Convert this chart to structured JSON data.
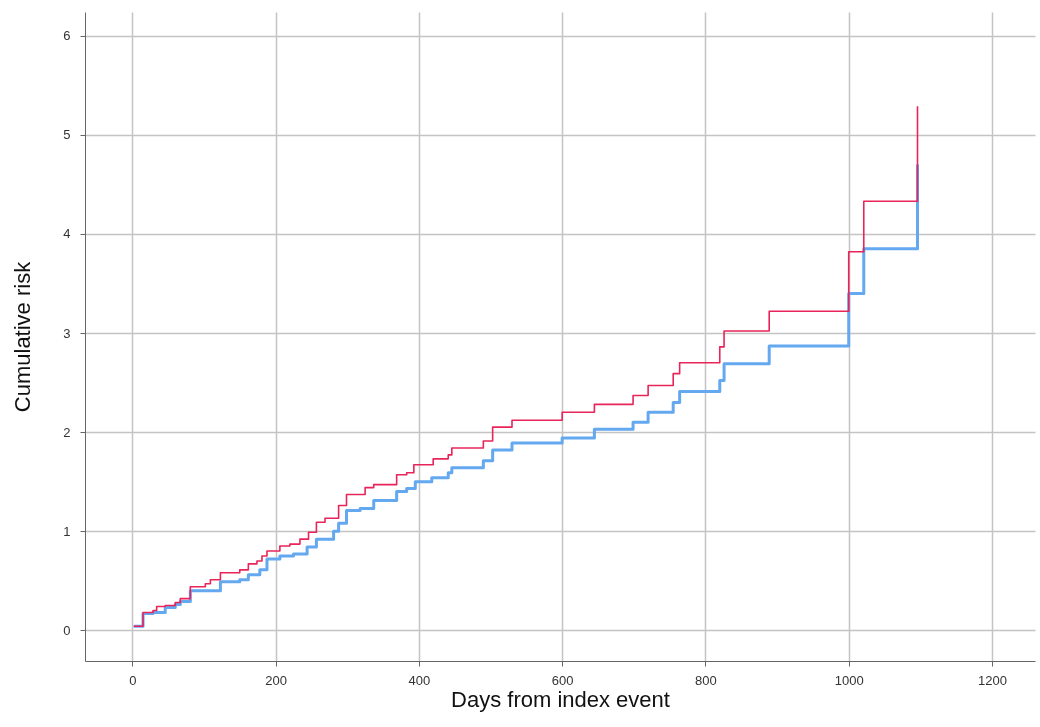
{
  "chart_data": {
    "type": "step",
    "xlabel": "Days from index event",
    "ylabel": "Cumulative risk",
    "xlim": [
      -66,
      1260
    ],
    "ylim": [
      -0.31,
      6.24
    ],
    "xticks": [
      0,
      200,
      400,
      600,
      800,
      1000,
      1200
    ],
    "yticks": [
      0,
      1,
      2,
      3,
      4,
      5,
      6
    ],
    "grid": true,
    "series": [
      {
        "color": "#64a8ef",
        "x": [
          2,
          15,
          29,
          46,
          60,
          67,
          81,
          123,
          150,
          162,
          178,
          188,
          206,
          225,
          244,
          257,
          281,
          288,
          299,
          318,
          337,
          369,
          383,
          395,
          418,
          441,
          446,
          490,
          503,
          530,
          600,
          645,
          699,
          720,
          755,
          764,
          820,
          826,
          889,
          1000,
          1021,
          1096
        ],
        "values": [
          0.04,
          0.17,
          0.18,
          0.23,
          0.26,
          0.29,
          0.4,
          0.49,
          0.51,
          0.56,
          0.61,
          0.72,
          0.75,
          0.77,
          0.84,
          0.92,
          1.0,
          1.08,
          1.21,
          1.23,
          1.31,
          1.4,
          1.43,
          1.5,
          1.54,
          1.59,
          1.64,
          1.71,
          1.82,
          1.89,
          1.94,
          2.03,
          2.1,
          2.2,
          2.3,
          2.41,
          2.52,
          2.69,
          2.87,
          3.4,
          3.85,
          4.7
        ]
      },
      {
        "color": "#e8245a",
        "x": [
          2,
          15,
          29,
          34,
          46,
          60,
          67,
          81,
          102,
          109,
          123,
          150,
          162,
          174,
          181,
          188,
          206,
          220,
          234,
          246,
          257,
          269,
          288,
          299,
          325,
          337,
          369,
          383,
          393,
          420,
          441,
          446,
          490,
          503,
          530,
          600,
          645,
          699,
          720,
          755,
          764,
          820,
          826,
          889,
          1000,
          1021,
          1096
        ],
        "values": [
          0.04,
          0.18,
          0.2,
          0.24,
          0.25,
          0.28,
          0.32,
          0.44,
          0.47,
          0.51,
          0.58,
          0.61,
          0.67,
          0.7,
          0.75,
          0.8,
          0.85,
          0.87,
          0.92,
          0.99,
          1.09,
          1.13,
          1.26,
          1.37,
          1.44,
          1.47,
          1.57,
          1.59,
          1.67,
          1.73,
          1.77,
          1.84,
          1.91,
          2.05,
          2.12,
          2.2,
          2.28,
          2.37,
          2.47,
          2.59,
          2.7,
          2.86,
          3.02,
          3.22,
          3.82,
          4.33,
          5.29
        ]
      }
    ]
  }
}
